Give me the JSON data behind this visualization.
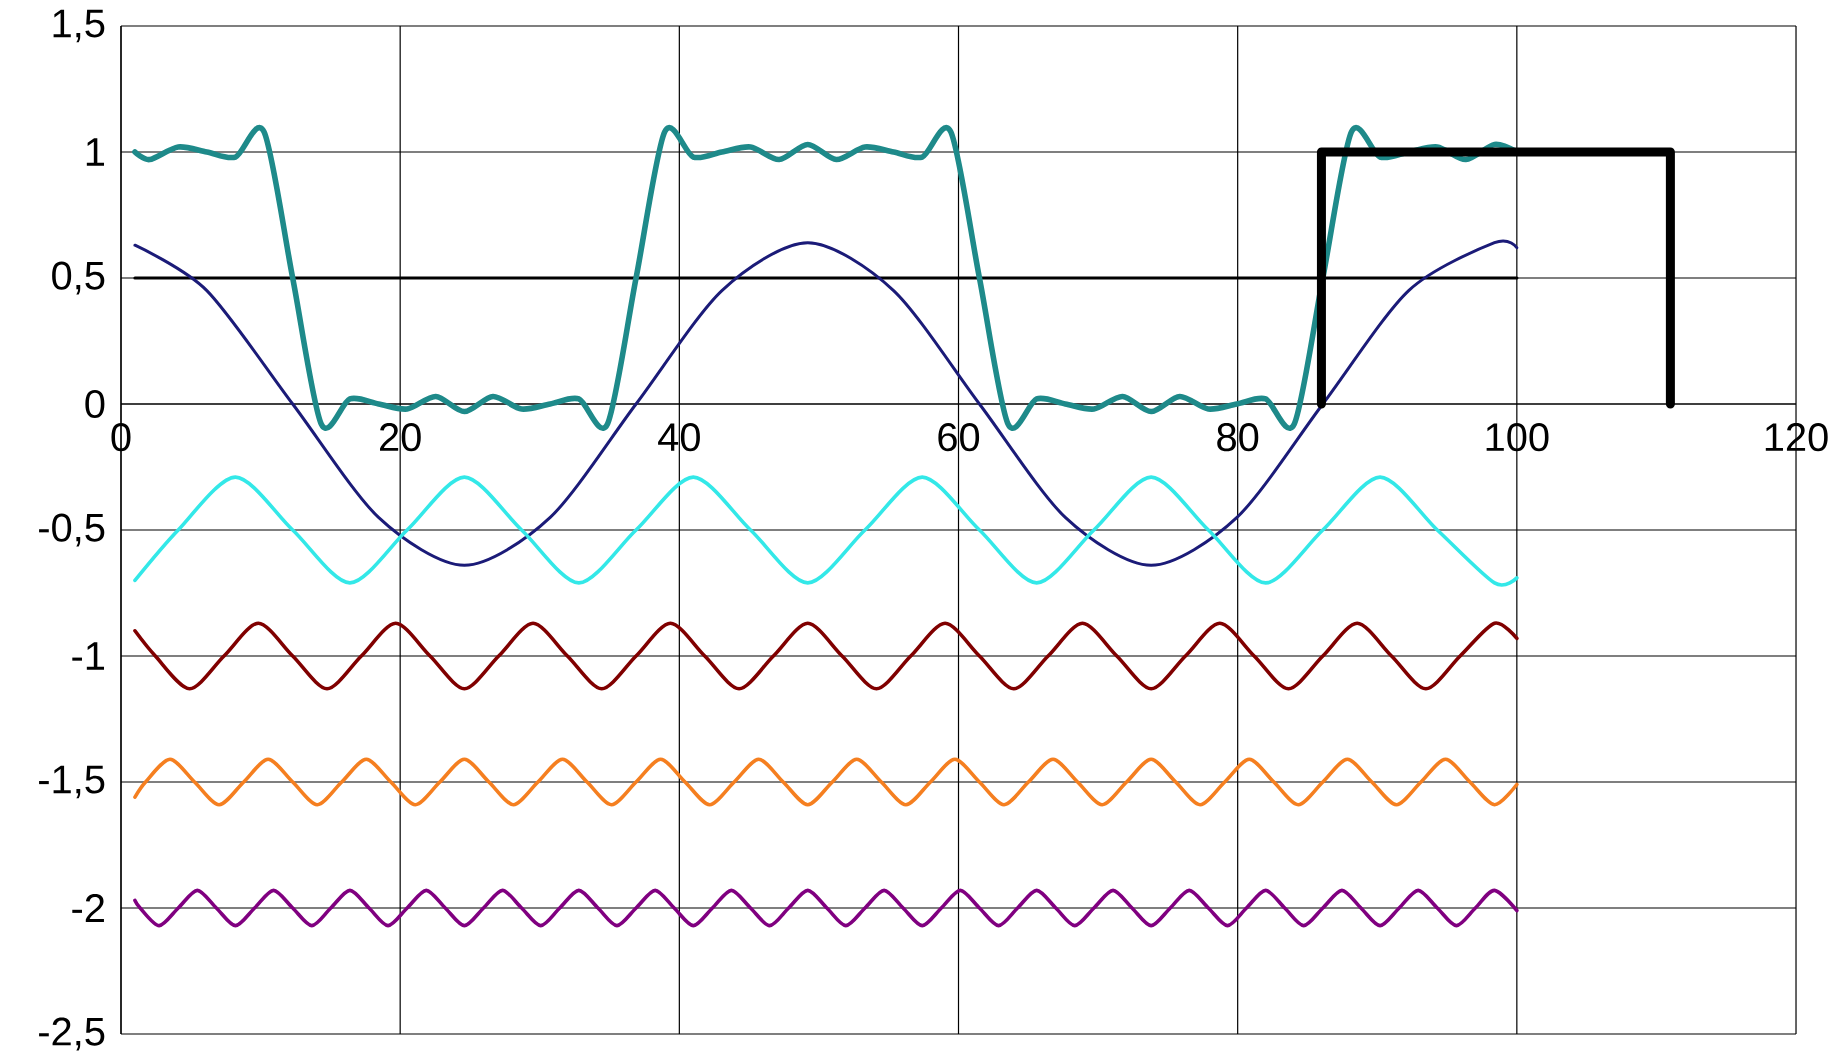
{
  "chart_data": {
    "type": "line",
    "xlim": [
      0,
      120
    ],
    "ylim": [
      -2.5,
      1.5
    ],
    "xticks": [
      0,
      20,
      40,
      60,
      80,
      100,
      120
    ],
    "yticks": [
      {
        "value": -2.5,
        "label": "-2,5"
      },
      -2,
      {
        "value": -1.5,
        "label": "-1,5"
      },
      -1,
      {
        "value": -0.5,
        "label": "-0,5"
      },
      0,
      {
        "value": 0.5,
        "label": "0,5"
      },
      1,
      {
        "value": 1.5,
        "label": "1,5"
      }
    ],
    "grid": true,
    "marker": "none",
    "line_style": "solid",
    "series": [
      {
        "color": "#000000",
        "x": [
          1,
          100
        ],
        "values": [
          0.5,
          0.5
        ]
      },
      {
        "color": "#1b1b78",
        "x": [
          1,
          6.15,
          12.3,
          18.45,
          24.6,
          30.75,
          36.9,
          43.05,
          49.2,
          55.35,
          61.5,
          67.65,
          73.8,
          79.95,
          86.1,
          92.25,
          98.4,
          100
        ],
        "values": [
          0.63,
          0.45,
          0,
          -0.45,
          -0.64,
          -0.45,
          0,
          0.45,
          0.64,
          0.45,
          0,
          -0.45,
          -0.64,
          -0.45,
          0,
          0.45,
          0.64,
          0.62
        ]
      },
      {
        "color": "#33e8e8",
        "x": [
          1,
          4.1,
          8.2,
          12.3,
          16.4,
          20.5,
          24.6,
          28.7,
          32.8,
          36.9,
          41,
          45.1,
          49.2,
          53.3,
          57.4,
          61.5,
          65.6,
          69.7,
          73.8,
          77.9,
          82,
          86.1,
          90.2,
          94.3,
          98.4,
          100
        ],
        "values": [
          -0.7,
          -0.5,
          -0.29,
          -0.5,
          -0.71,
          -0.5,
          -0.29,
          -0.5,
          -0.71,
          -0.5,
          -0.29,
          -0.5,
          -0.71,
          -0.5,
          -0.29,
          -0.5,
          -0.71,
          -0.5,
          -0.29,
          -0.5,
          -0.71,
          -0.5,
          -0.29,
          -0.5,
          -0.71,
          -0.69
        ]
      },
      {
        "color": "#800000",
        "x": [
          1,
          2.46,
          4.92,
          7.38,
          9.84,
          12.3,
          14.76,
          17.22,
          19.68,
          22.14,
          24.6,
          27.06,
          29.52,
          31.98,
          34.44,
          36.9,
          39.36,
          41.82,
          44.28,
          46.74,
          49.2,
          51.66,
          54.12,
          56.58,
          59.04,
          61.5,
          63.96,
          66.42,
          68.88,
          71.34,
          73.8,
          76.26,
          78.72,
          81.18,
          83.64,
          86.1,
          88.56,
          91.02,
          93.48,
          95.94,
          98.4,
          100
        ],
        "values": [
          -0.9,
          -1,
          -1.13,
          -1,
          -0.87,
          -1,
          -1.13,
          -1,
          -0.87,
          -1,
          -1.13,
          -1,
          -0.87,
          -1,
          -1.13,
          -1,
          -0.87,
          -1,
          -1.13,
          -1,
          -0.87,
          -1,
          -1.13,
          -1,
          -0.87,
          -1,
          -1.13,
          -1,
          -0.87,
          -1,
          -1.13,
          -1,
          -0.87,
          -1,
          -1.13,
          -1,
          -0.87,
          -1,
          -1.13,
          -1,
          -0.87,
          -0.93
        ]
      },
      {
        "color": "#f57f20",
        "x": [
          1,
          1.76,
          3.51,
          5.27,
          7.03,
          8.79,
          10.54,
          12.3,
          14.06,
          15.81,
          17.57,
          19.33,
          21.09,
          22.84,
          24.6,
          26.36,
          28.11,
          29.87,
          31.63,
          33.39,
          35.14,
          36.9,
          38.66,
          40.41,
          42.17,
          43.93,
          45.69,
          47.44,
          49.2,
          50.96,
          52.71,
          54.47,
          56.23,
          57.99,
          59.74,
          61.5,
          63.26,
          65.01,
          66.77,
          68.53,
          70.29,
          72.04,
          73.8,
          75.56,
          77.31,
          79.07,
          80.83,
          82.59,
          84.34,
          86.1,
          87.86,
          89.61,
          91.37,
          93.13,
          94.89,
          96.64,
          98.4,
          100
        ],
        "values": [
          -1.56,
          -1.5,
          -1.41,
          -1.5,
          -1.59,
          -1.5,
          -1.41,
          -1.5,
          -1.59,
          -1.5,
          -1.41,
          -1.5,
          -1.59,
          -1.5,
          -1.41,
          -1.5,
          -1.59,
          -1.5,
          -1.41,
          -1.5,
          -1.59,
          -1.5,
          -1.41,
          -1.5,
          -1.59,
          -1.5,
          -1.41,
          -1.5,
          -1.59,
          -1.5,
          -1.41,
          -1.5,
          -1.59,
          -1.5,
          -1.41,
          -1.5,
          -1.59,
          -1.5,
          -1.41,
          -1.5,
          -1.59,
          -1.5,
          -1.41,
          -1.5,
          -1.59,
          -1.5,
          -1.41,
          -1.5,
          -1.59,
          -1.5,
          -1.41,
          -1.5,
          -1.59,
          -1.5,
          -1.41,
          -1.5,
          -1.59,
          -1.51
        ]
      },
      {
        "color": "#800080",
        "x": [
          1,
          1.37,
          2.73,
          4.1,
          5.47,
          6.83,
          8.2,
          9.57,
          10.93,
          12.3,
          13.67,
          15.03,
          16.4,
          17.77,
          19.13,
          20.5,
          21.87,
          23.23,
          24.6,
          25.97,
          27.33,
          28.7,
          30.07,
          31.43,
          32.8,
          34.17,
          35.53,
          36.9,
          38.27,
          39.63,
          41,
          42.37,
          43.73,
          45.1,
          46.47,
          47.83,
          49.2,
          50.57,
          51.93,
          53.3,
          54.67,
          56.03,
          57.4,
          58.77,
          60.13,
          61.5,
          62.87,
          64.23,
          65.6,
          66.97,
          68.33,
          69.7,
          71.07,
          72.43,
          73.8,
          75.17,
          76.53,
          77.9,
          79.27,
          80.63,
          82,
          83.37,
          84.73,
          86.1,
          87.47,
          88.83,
          90.2,
          91.57,
          92.93,
          94.3,
          95.67,
          97.03,
          98.4,
          100
        ],
        "values": [
          -1.97,
          -2,
          -2.07,
          -2,
          -1.93,
          -2,
          -2.07,
          -2,
          -1.93,
          -2,
          -2.07,
          -2,
          -1.93,
          -2,
          -2.07,
          -2,
          -1.93,
          -2,
          -2.07,
          -2,
          -1.93,
          -2,
          -2.07,
          -2,
          -1.93,
          -2,
          -2.07,
          -2,
          -1.93,
          -2,
          -2.07,
          -2,
          -1.93,
          -2,
          -2.07,
          -2,
          -1.93,
          -2,
          -2.07,
          -2,
          -1.93,
          -2,
          -2.07,
          -2,
          -1.93,
          -2,
          -2.07,
          -2,
          -1.93,
          -2,
          -2.07,
          -2,
          -1.93,
          -2,
          -2.07,
          -2,
          -1.93,
          -2,
          -2.07,
          -2,
          -1.93,
          -2,
          -2.07,
          -2,
          -1.93,
          -2,
          -2.07,
          -2,
          -1.93,
          -2,
          -2.07,
          -2,
          -1.93,
          -2.01
        ]
      },
      {
        "color": "#1e8a8a",
        "x": [
          1,
          2.05,
          4.1,
          6.15,
          8.2,
          10.25,
          12.3,
          14.35,
          16.4,
          18.45,
          20.5,
          22.55,
          24.6,
          26.65,
          28.7,
          30.75,
          32.8,
          34.85,
          36.9,
          38.95,
          41,
          43.05,
          45.1,
          47.15,
          49.2,
          51.25,
          53.3,
          55.35,
          57.4,
          59.45,
          61.5,
          63.55,
          65.6,
          67.65,
          69.7,
          71.75,
          73.8,
          75.85,
          77.9,
          79.95,
          82,
          84.05,
          86.1,
          88.15,
          90.2,
          92.25,
          94.3,
          96.35,
          98.4,
          100
        ],
        "values": [
          1,
          0.97,
          1.02,
          1,
          0.98,
          1.08,
          0.5,
          -0.08,
          0.02,
          0,
          -0.02,
          0.03,
          -0.03,
          0.03,
          -0.02,
          0,
          0.02,
          -0.08,
          0.5,
          1.08,
          0.98,
          1,
          1.02,
          0.97,
          1.03,
          0.97,
          1.02,
          1,
          0.98,
          1.08,
          0.5,
          -0.08,
          0.02,
          0,
          -0.02,
          0.03,
          -0.03,
          0.03,
          -0.02,
          0,
          0.02,
          -0.08,
          0.5,
          1.08,
          0.98,
          1,
          1.02,
          0.97,
          1.03,
          1
        ]
      },
      {
        "color": "#000000",
        "x": [
          86,
          86,
          111,
          111
        ],
        "values": [
          0,
          1,
          1,
          0
        ]
      }
    ]
  }
}
